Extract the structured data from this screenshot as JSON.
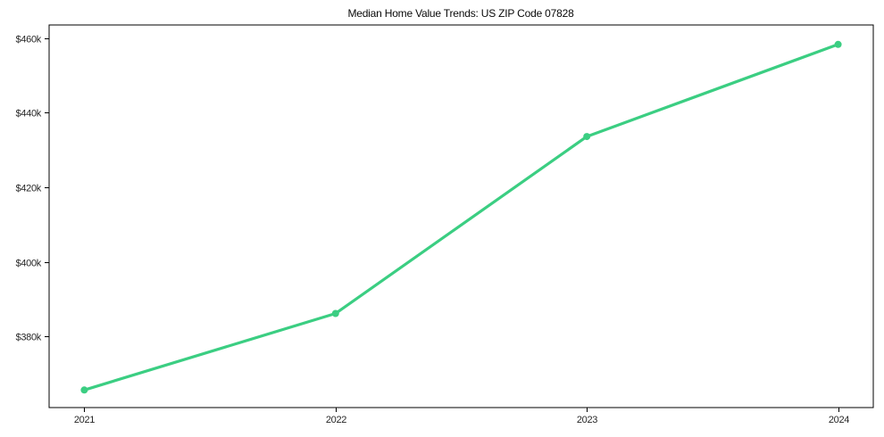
{
  "figure": {
    "background": "#ffffff",
    "border_color": "#000000"
  },
  "chart_data": {
    "type": "line",
    "title": "Median Home Value Trends: US ZIP Code 07828",
    "xlabel": "",
    "ylabel": "",
    "x": [
      2021,
      2022,
      2023,
      2024
    ],
    "x_tick_labels": [
      "2021",
      "2022",
      "2023",
      "2024"
    ],
    "series": [
      {
        "name": "Median home value",
        "values": [
          365700,
          386200,
          433600,
          458300
        ],
        "color": "#3bce82",
        "line_width": 3.2,
        "marker": "circle",
        "marker_radius": 4
      }
    ],
    "y_ticks": [
      380000,
      400000,
      420000,
      440000,
      460000
    ],
    "y_tick_labels": [
      "$380k",
      "$400k",
      "$420k",
      "$440k",
      "$460k"
    ],
    "xlim": [
      2020.86,
      2024.14
    ],
    "ylim": [
      361000,
      463500
    ],
    "grid": false,
    "legend": "none",
    "axis_color": "#000000",
    "tick_label_color": "#262626",
    "tick_length": 5
  }
}
